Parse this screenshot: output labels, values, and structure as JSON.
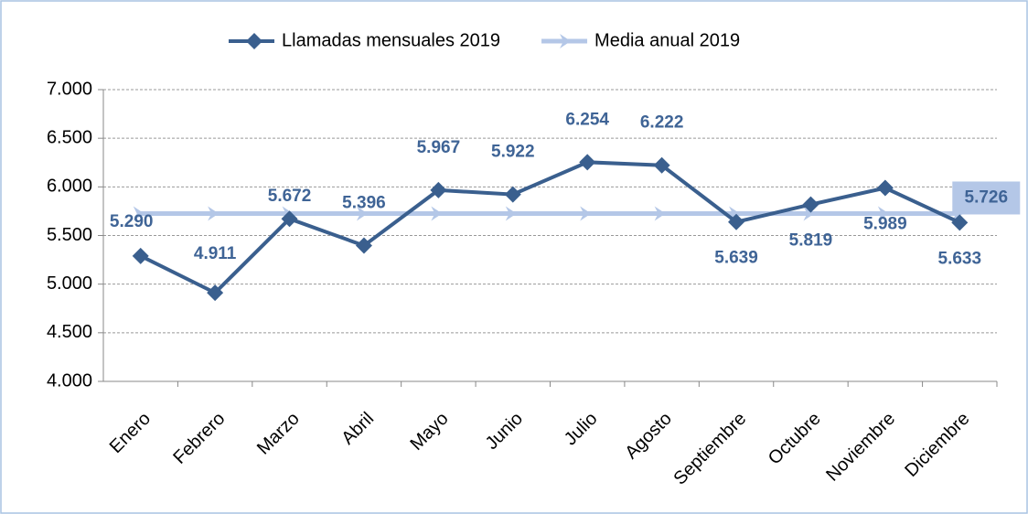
{
  "chart_data": {
    "type": "line",
    "categories": [
      "Enero",
      "Febrero",
      "Marzo",
      "Abril",
      "Mayo",
      "Junio",
      "Julio",
      "Agosto",
      "Septiembre",
      "Octubre",
      "Noviembre",
      "Diciembre"
    ],
    "series": [
      {
        "name": "Llamadas mensuales 2019",
        "color": "#3a5f8e",
        "marker": "diamond",
        "values": [
          5290,
          4911,
          5672,
          5396,
          5967,
          5922,
          6254,
          6222,
          5639,
          5819,
          5989,
          5633
        ],
        "value_labels": [
          "5.290",
          "4.911",
          "5.672",
          "5.396",
          "5.967",
          "5.922",
          "6.254",
          "6.222",
          "5.639",
          "5.819",
          "5.989",
          "5.633"
        ]
      },
      {
        "name": "Media anual 2019",
        "color": "#b4c7e7",
        "marker": "arrow",
        "values": [
          5726,
          5726,
          5726,
          5726,
          5726,
          5726,
          5726,
          5726,
          5726,
          5726,
          5726,
          5726
        ],
        "value_labels": [
          null,
          null,
          null,
          null,
          null,
          null,
          null,
          null,
          null,
          null,
          null,
          "5.726"
        ]
      }
    ],
    "ylim": [
      4000,
      7000
    ],
    "yticks": [
      {
        "value": 4000,
        "label": "4.000"
      },
      {
        "value": 4500,
        "label": "4.500"
      },
      {
        "value": 5000,
        "label": "5.000"
      },
      {
        "value": 5500,
        "label": "5.500"
      },
      {
        "value": 6000,
        "label": "6.000"
      },
      {
        "value": 6500,
        "label": "6.500"
      },
      {
        "value": 7000,
        "label": "7.000"
      }
    ],
    "grid": true,
    "legend": "top"
  }
}
